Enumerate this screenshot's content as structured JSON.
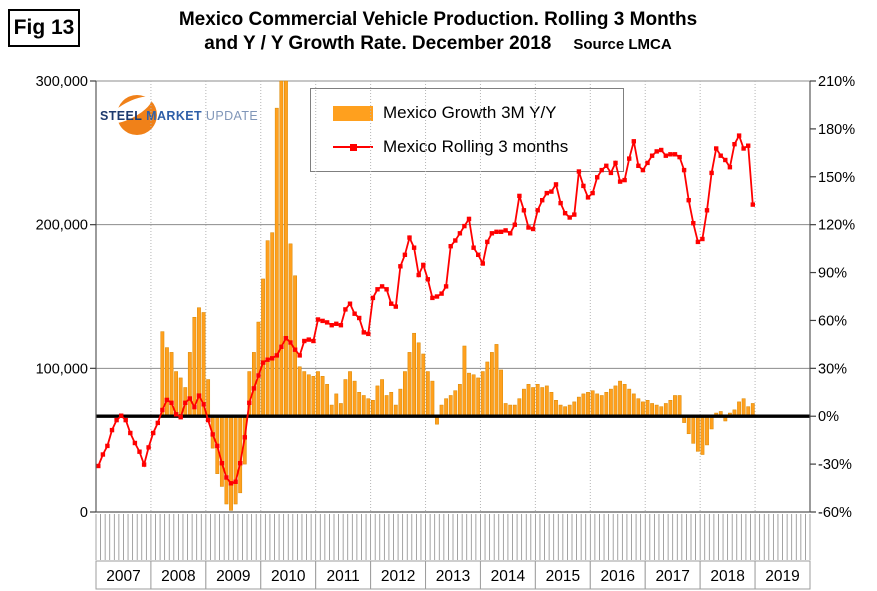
{
  "fig_label": "Fig 13",
  "title": {
    "line1": "Mexico Commercial Vehicle Production. Rolling 3 Months",
    "line2": "and Y / Y Growth Rate. December 2018",
    "source": "Source LMCA"
  },
  "logo": {
    "word1": "STEEL",
    "word2": "MARKET",
    "word3": "UPDATE",
    "mark_color": "#F08119"
  },
  "legend": [
    {
      "label": "Mexico Growth 3M Y/Y",
      "type": "bar",
      "color": "#FFA01E"
    },
    {
      "label": "Mexico Rolling 3 months",
      "type": "line",
      "color": "#FF0000"
    }
  ],
  "chart_data": {
    "type": "bar",
    "combo": true,
    "title": "Mexico Commercial Vehicle Production. Rolling 3 Months and Y / Y Growth Rate. December 2018",
    "x_axis": {
      "start": "2007-01",
      "end": "2019-12",
      "year_labels": [
        "2007",
        "2008",
        "2009",
        "2010",
        "2011",
        "2012",
        "2013",
        "2014",
        "2015",
        "2016",
        "2017",
        "2018",
        "2019"
      ]
    },
    "left_axis": {
      "min": 0,
      "max": 300000,
      "tick_values": [
        0,
        100000,
        200000,
        300000
      ],
      "tick_labels": [
        "0",
        "100,000",
        "200,000",
        "300,000"
      ]
    },
    "right_axis": {
      "min": -60,
      "max": 210,
      "tick_values": [
        210,
        180,
        150,
        120,
        90,
        60,
        30,
        0,
        -30,
        -60
      ],
      "tick_labels": [
        "210%",
        "180%",
        "150%",
        "120%",
        "90%",
        "60%",
        "30%",
        "0%",
        "-30%",
        "-60%"
      ]
    },
    "zero_line": {
      "axis": "right",
      "value": 0,
      "color": "#000000"
    },
    "grid": {
      "horizontal_at_left_values": [
        100000,
        200000,
        300000
      ],
      "vertical_dashed_yearly": true
    },
    "series": [
      {
        "name": "Mexico Growth 3M Y/Y",
        "type": "bar",
        "axis": "right",
        "unit": "%",
        "color": "#FFA01E",
        "border_color": "#D88700",
        "start_month": "2008-03",
        "values": [
          53,
          43,
          40,
          28,
          24,
          18,
          40,
          62,
          68,
          65,
          23,
          -20,
          -36,
          -44,
          -55,
          -59,
          -55,
          -48,
          -30,
          28,
          40,
          59,
          86,
          110,
          115,
          193,
          212,
          212,
          108,
          88,
          31,
          28,
          26,
          25,
          28,
          25,
          20,
          7,
          14,
          8,
          23,
          28,
          22,
          15,
          13,
          11,
          10,
          19,
          23,
          13,
          15,
          7,
          17,
          28,
          40,
          52,
          46,
          39,
          28,
          22,
          -5,
          7,
          11,
          13,
          16,
          20,
          44,
          27,
          26,
          24,
          28,
          34,
          40,
          45,
          29,
          8,
          7,
          7,
          11,
          17,
          20,
          18,
          20,
          18,
          19,
          15,
          10,
          7,
          6,
          7,
          9,
          12,
          14,
          15,
          16,
          14,
          13,
          15,
          17,
          19,
          22,
          20,
          17,
          14,
          11,
          9,
          10,
          8,
          7,
          6,
          8,
          10,
          13,
          13,
          -4,
          -11,
          -17,
          -22,
          -24,
          -18,
          -8,
          2,
          3,
          -3,
          2,
          4,
          9,
          11,
          6,
          8
        ]
      },
      {
        "name": "Mexico Rolling 3 months",
        "type": "line",
        "axis": "left",
        "unit": "vehicles",
        "color": "#FF0000",
        "start_month": "2007-01",
        "values": [
          32000,
          40000,
          46000,
          57000,
          64000,
          67000,
          64000,
          55000,
          48000,
          42000,
          33000,
          45000,
          55000,
          62000,
          71000,
          78000,
          76000,
          68000,
          66000,
          76000,
          79000,
          73000,
          81000,
          75000,
          64000,
          54000,
          46000,
          34000,
          24000,
          20000,
          21000,
          34000,
          52000,
          76000,
          86000,
          95000,
          104000,
          106000,
          107000,
          109000,
          115000,
          121000,
          118000,
          113000,
          109000,
          119000,
          120000,
          119000,
          134000,
          133000,
          132000,
          130000,
          131000,
          130000,
          141000,
          145000,
          138000,
          135000,
          125000,
          124000,
          149000,
          155000,
          157000,
          155000,
          145000,
          143000,
          171000,
          179000,
          191000,
          184000,
          165000,
          172000,
          162000,
          149000,
          150000,
          152000,
          157000,
          185000,
          189000,
          194000,
          199000,
          204000,
          184000,
          179000,
          173000,
          188000,
          194000,
          195000,
          195000,
          196000,
          194000,
          200000,
          220000,
          210000,
          198000,
          197000,
          210000,
          217000,
          222000,
          223000,
          228000,
          215000,
          208000,
          205000,
          207000,
          237000,
          227000,
          219000,
          222000,
          233000,
          238000,
          241000,
          236000,
          243000,
          230000,
          231000,
          246000,
          258000,
          241000,
          238000,
          243000,
          248000,
          251000,
          252000,
          248000,
          249000,
          249000,
          247000,
          238000,
          217000,
          201000,
          188000,
          190000,
          210000,
          236000,
          253000,
          248000,
          245000,
          240000,
          256000,
          262000,
          253000,
          255000,
          214000
        ]
      }
    ]
  }
}
